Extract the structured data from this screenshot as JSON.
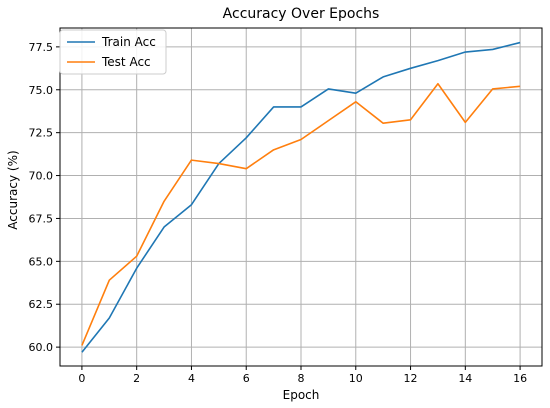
{
  "chart_data": {
    "type": "line",
    "title": "Accuracy Over Epochs",
    "xlabel": "Epoch",
    "ylabel": "Accuracy (%)",
    "x": [
      0,
      1,
      2,
      3,
      4,
      5,
      6,
      7,
      8,
      9,
      10,
      11,
      12,
      13,
      14,
      15,
      16
    ],
    "series": [
      {
        "name": "Train Acc",
        "color": "#1f77b4",
        "values": [
          59.7,
          61.7,
          64.6,
          67.0,
          68.3,
          70.7,
          72.2,
          74.0,
          74.0,
          75.05,
          74.8,
          75.75,
          76.25,
          76.7,
          77.2,
          77.35,
          77.75
        ]
      },
      {
        "name": "Test Acc",
        "color": "#ff7f0e",
        "values": [
          60.1,
          63.9,
          65.3,
          68.5,
          70.9,
          70.7,
          70.4,
          71.5,
          72.1,
          73.2,
          74.3,
          73.05,
          73.25,
          75.35,
          73.1,
          75.05,
          75.2
        ]
      }
    ],
    "xlim": [
      -0.8,
      16.8
    ],
    "ylim": [
      58.9,
      78.6
    ],
    "xticks": [
      0,
      2,
      4,
      6,
      8,
      10,
      12,
      14,
      16
    ],
    "yticks": [
      60.0,
      62.5,
      65.0,
      67.5,
      70.0,
      72.5,
      75.0,
      77.5
    ],
    "ytick_labels": [
      "60.0",
      "62.5",
      "65.0",
      "67.5",
      "70.0",
      "72.5",
      "75.0",
      "77.5"
    ],
    "grid": true,
    "legend_position": "top-left"
  }
}
